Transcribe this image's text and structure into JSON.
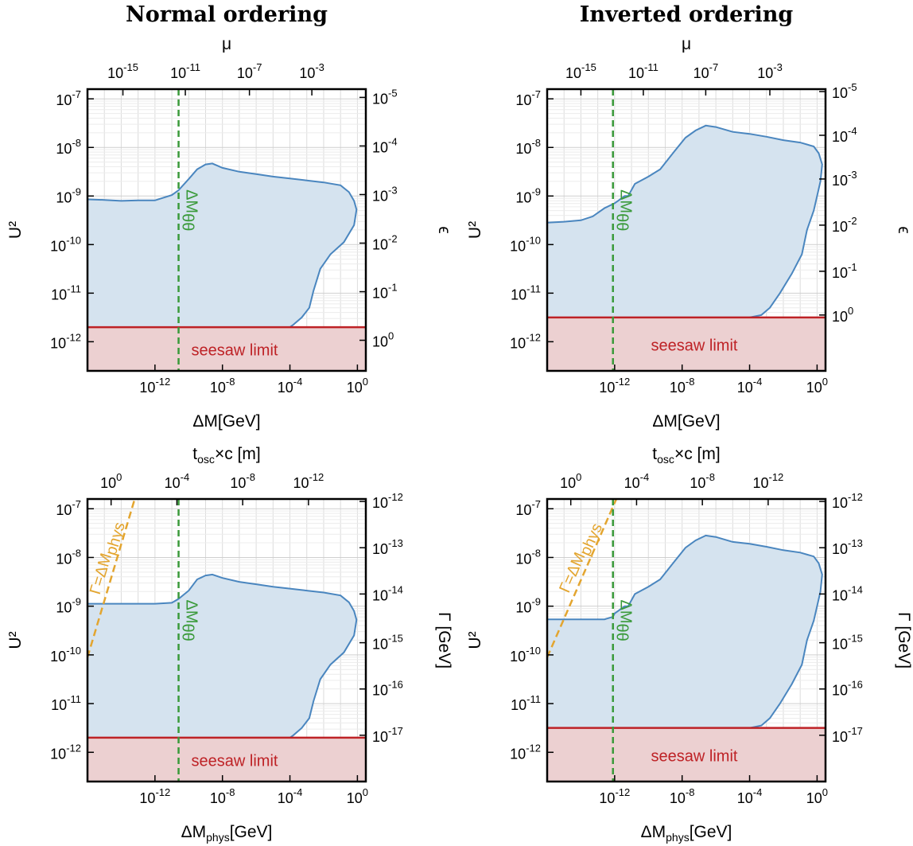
{
  "colors": {
    "region_fill": "#d5e3ef",
    "region_line": "#4a86bf",
    "seesaw_fill": "#ecd0d1",
    "seesaw_line": "#be2226",
    "dm_theta_line": "#3a9a3a",
    "gamma_line": "#e3a52f",
    "grid": "#dcdcdc"
  },
  "chart_data": [
    {
      "type": "area",
      "title": "Normal ordering",
      "xlabel": "ΔM[GeV]",
      "ylabel": "U²",
      "x2label": "μ",
      "y2label": "ϵ",
      "x_scale": "log",
      "y_scale": "log",
      "xlim_log10": [
        -16,
        0.5
      ],
      "ylim_log10": [
        -12.6,
        -6.8
      ],
      "x_ticks_log10": [
        -12,
        -8,
        -4,
        0
      ],
      "y_ticks_log10": [
        -12,
        -11,
        -10,
        -9,
        -8,
        -7
      ],
      "x2_ticks": [
        {
          "exp": "-15",
          "at_log10_x": -13.9
        },
        {
          "exp": "-11",
          "at_log10_x": -10.2
        },
        {
          "exp": "-7",
          "at_log10_x": -6.4
        },
        {
          "exp": "-3",
          "at_log10_x": -2.7
        }
      ],
      "y2_ticks": [
        {
          "label": "10",
          "exp": "-5",
          "at_log10_y": -6.97
        },
        {
          "label": "10",
          "exp": "-4",
          "at_log10_y": -7.97
        },
        {
          "label": "10",
          "exp": "-3",
          "at_log10_y": -8.97
        },
        {
          "label": "10",
          "exp": "-2",
          "at_log10_y": -9.97
        },
        {
          "label": "10",
          "exp": "-1",
          "at_log10_y": -10.97
        },
        {
          "label": "10",
          "exp": "0",
          "at_log10_y": -11.97
        }
      ],
      "grid": true,
      "seesaw_limit_log10_U2": -11.7,
      "seesaw_label": "seesaw limit",
      "dm_theta_log10_x": -10.6,
      "dm_theta_label": "ΔM",
      "dm_theta_sub": "θθ",
      "region_boundary_log10": [
        [
          -16,
          -9.07
        ],
        [
          -15,
          -9.08
        ],
        [
          -14,
          -9.1
        ],
        [
          -13,
          -9.09
        ],
        [
          -12,
          -9.09
        ],
        [
          -11,
          -8.98
        ],
        [
          -10.6,
          -8.88
        ],
        [
          -10,
          -8.65
        ],
        [
          -9.5,
          -8.45
        ],
        [
          -9,
          -8.35
        ],
        [
          -8.6,
          -8.33
        ],
        [
          -8,
          -8.42
        ],
        [
          -7,
          -8.5
        ],
        [
          -6,
          -8.55
        ],
        [
          -5,
          -8.6
        ],
        [
          -4,
          -8.64
        ],
        [
          -3,
          -8.68
        ],
        [
          -2,
          -8.72
        ],
        [
          -1,
          -8.78
        ],
        [
          -0.5,
          -8.92
        ],
        [
          -0.2,
          -9.1
        ],
        [
          -0.05,
          -9.28
        ],
        [
          -0.2,
          -9.6
        ],
        [
          -0.8,
          -9.95
        ],
        [
          -1.6,
          -10.2
        ],
        [
          -2.2,
          -10.5
        ],
        [
          -2.6,
          -10.95
        ],
        [
          -2.85,
          -11.3
        ],
        [
          -3.3,
          -11.5
        ],
        [
          -3.8,
          -11.65
        ],
        [
          -4,
          -11.7
        ],
        [
          -16,
          -11.7
        ]
      ],
      "gamma_line": null
    },
    {
      "type": "area",
      "title": "Inverted ordering",
      "xlabel": "ΔM[GeV]",
      "ylabel": "U²",
      "x2label": "μ",
      "y2label": "ϵ",
      "x_scale": "log",
      "y_scale": "log",
      "xlim_log10": [
        -16,
        0.5
      ],
      "ylim_log10": [
        -12.6,
        -6.8
      ],
      "x_ticks_log10": [
        -12,
        -8,
        -4,
        0
      ],
      "y_ticks_log10": [
        -12,
        -11,
        -10,
        -9,
        -8,
        -7
      ],
      "x2_ticks": [
        {
          "exp": "-15",
          "at_log10_x": -14
        },
        {
          "exp": "-11",
          "at_log10_x": -10.3
        },
        {
          "exp": "-7",
          "at_log10_x": -6.6
        },
        {
          "exp": "-3",
          "at_log10_x": -2.8
        }
      ],
      "y2_ticks": [
        {
          "label": "10",
          "exp": "-5",
          "at_log10_y": -6.85
        },
        {
          "label": "10",
          "exp": "-4",
          "at_log10_y": -7.75
        },
        {
          "label": "10",
          "exp": "-3",
          "at_log10_y": -8.65
        },
        {
          "label": "10",
          "exp": "-2",
          "at_log10_y": -9.6
        },
        {
          "label": "10",
          "exp": "-1",
          "at_log10_y": -10.55
        },
        {
          "label": "10",
          "exp": "0",
          "at_log10_y": -11.45
        }
      ],
      "grid": true,
      "seesaw_limit_log10_U2": -11.5,
      "seesaw_label": "seesaw limit",
      "dm_theta_log10_x": -12.1,
      "dm_theta_label": "ΔM",
      "dm_theta_sub": "θθ",
      "region_boundary_log10": [
        [
          -16,
          -9.55
        ],
        [
          -15,
          -9.53
        ],
        [
          -14,
          -9.5
        ],
        [
          -13.3,
          -9.42
        ],
        [
          -12.6,
          -9.25
        ],
        [
          -12,
          -9.15
        ],
        [
          -11.4,
          -9.0
        ],
        [
          -11.2,
          -9.0
        ],
        [
          -10.8,
          -8.75
        ],
        [
          -10,
          -8.6
        ],
        [
          -9.3,
          -8.45
        ],
        [
          -8.5,
          -8.1
        ],
        [
          -7.8,
          -7.8
        ],
        [
          -7.2,
          -7.65
        ],
        [
          -6.6,
          -7.55
        ],
        [
          -6,
          -7.58
        ],
        [
          -5,
          -7.68
        ],
        [
          -4,
          -7.72
        ],
        [
          -3,
          -7.78
        ],
        [
          -2,
          -7.85
        ],
        [
          -1,
          -7.9
        ],
        [
          -0.2,
          -7.98
        ],
        [
          0.1,
          -8.12
        ],
        [
          0.3,
          -8.35
        ],
        [
          0.2,
          -8.7
        ],
        [
          -0.2,
          -9.3
        ],
        [
          -0.6,
          -9.7
        ],
        [
          -0.9,
          -10.2
        ],
        [
          -1.5,
          -10.6
        ],
        [
          -2.2,
          -11.0
        ],
        [
          -2.8,
          -11.3
        ],
        [
          -3.3,
          -11.45
        ],
        [
          -4,
          -11.5
        ],
        [
          -16,
          -11.5
        ]
      ],
      "gamma_line": null
    },
    {
      "type": "area",
      "title": "",
      "xlabel": "ΔM",
      "xlabel_sub": "phys",
      "xlabel_tail": "[GeV]",
      "ylabel": "U²",
      "x2label": "t",
      "x2label_sub": "osc",
      "x2label_tail": "×c [m]",
      "y2label": "Γ [GeV]",
      "x_scale": "log",
      "y_scale": "log",
      "xlim_log10": [
        -16,
        0.5
      ],
      "ylim_log10": [
        -12.6,
        -6.8
      ],
      "x_ticks_log10": [
        -12,
        -8,
        -4,
        0
      ],
      "y_ticks_log10": [
        -12,
        -11,
        -10,
        -9,
        -8,
        -7
      ],
      "x2_ticks": [
        {
          "exp": "0",
          "at_log10_x": -14.6
        },
        {
          "exp": "-4",
          "at_log10_x": -10.7
        },
        {
          "exp": "-8",
          "at_log10_x": -6.8
        },
        {
          "exp": "-12",
          "at_log10_x": -2.9
        }
      ],
      "y2_ticks": [
        {
          "label": "10",
          "exp": "-12",
          "at_log10_y": -6.85
        },
        {
          "label": "10",
          "exp": "-13",
          "at_log10_y": -7.8
        },
        {
          "label": "10",
          "exp": "-14",
          "at_log10_y": -8.75
        },
        {
          "label": "10",
          "exp": "-15",
          "at_log10_y": -9.75
        },
        {
          "label": "10",
          "exp": "-16",
          "at_log10_y": -10.7
        },
        {
          "label": "10",
          "exp": "-17",
          "at_log10_y": -11.65
        }
      ],
      "grid": true,
      "seesaw_limit_log10_U2": -11.7,
      "seesaw_label": "seesaw limit",
      "dm_theta_log10_x": -10.6,
      "dm_theta_label": "ΔM",
      "dm_theta_sub": "θθ",
      "region_boundary_log10": [
        [
          -16,
          -8.95
        ],
        [
          -14,
          -8.95
        ],
        [
          -12,
          -8.95
        ],
        [
          -11,
          -8.93
        ],
        [
          -10.6,
          -8.85
        ],
        [
          -10,
          -8.68
        ],
        [
          -9.5,
          -8.45
        ],
        [
          -9,
          -8.37
        ],
        [
          -8.6,
          -8.35
        ],
        [
          -8,
          -8.42
        ],
        [
          -7,
          -8.5
        ],
        [
          -6,
          -8.55
        ],
        [
          -5,
          -8.6
        ],
        [
          -4,
          -8.64
        ],
        [
          -3,
          -8.68
        ],
        [
          -2,
          -8.72
        ],
        [
          -1,
          -8.78
        ],
        [
          -0.5,
          -8.92
        ],
        [
          -0.2,
          -9.1
        ],
        [
          -0.05,
          -9.28
        ],
        [
          -0.2,
          -9.6
        ],
        [
          -0.8,
          -9.95
        ],
        [
          -1.6,
          -10.2
        ],
        [
          -2.2,
          -10.5
        ],
        [
          -2.6,
          -10.95
        ],
        [
          -2.85,
          -11.3
        ],
        [
          -3.3,
          -11.5
        ],
        [
          -3.8,
          -11.65
        ],
        [
          -4,
          -11.7
        ],
        [
          -16,
          -11.7
        ]
      ],
      "gamma_line": {
        "label": "Γ=ΔM",
        "label_sub": "phys",
        "from_log10": [
          -16,
          -10.05
        ],
        "to_log10": [
          -13.2,
          -6.8
        ]
      }
    },
    {
      "type": "area",
      "title": "",
      "xlabel": "ΔM",
      "xlabel_sub": "phys",
      "xlabel_tail": "[GeV]",
      "ylabel": "U²",
      "x2label": "t",
      "x2label_sub": "osc",
      "x2label_tail": "×c [m]",
      "y2label": "Γ [GeV]",
      "x_scale": "log",
      "y_scale": "log",
      "xlim_log10": [
        -16,
        0.5
      ],
      "ylim_log10": [
        -12.6,
        -6.8
      ],
      "x_ticks_log10": [
        -12,
        -8,
        -4,
        0
      ],
      "y_ticks_log10": [
        -12,
        -11,
        -10,
        -9,
        -8,
        -7
      ],
      "x2_ticks": [
        {
          "exp": "0",
          "at_log10_x": -14.6
        },
        {
          "exp": "-4",
          "at_log10_x": -10.7
        },
        {
          "exp": "-8",
          "at_log10_x": -6.8
        },
        {
          "exp": "-12",
          "at_log10_x": -2.9
        }
      ],
      "y2_ticks": [
        {
          "label": "10",
          "exp": "-12",
          "at_log10_y": -6.85
        },
        {
          "label": "10",
          "exp": "-13",
          "at_log10_y": -7.8
        },
        {
          "label": "10",
          "exp": "-14",
          "at_log10_y": -8.75
        },
        {
          "label": "10",
          "exp": "-15",
          "at_log10_y": -9.75
        },
        {
          "label": "10",
          "exp": "-16",
          "at_log10_y": -10.7
        },
        {
          "label": "10",
          "exp": "-17",
          "at_log10_y": -11.65
        }
      ],
      "grid": true,
      "seesaw_limit_log10_U2": -11.5,
      "seesaw_label": "seesaw limit",
      "dm_theta_log10_x": -12.1,
      "dm_theta_label": "ΔM",
      "dm_theta_sub": "θθ",
      "region_boundary_log10": [
        [
          -16,
          -9.27
        ],
        [
          -14,
          -9.27
        ],
        [
          -12.6,
          -9.27
        ],
        [
          -12.1,
          -9.22
        ],
        [
          -12,
          -9.15
        ],
        [
          -11.4,
          -9.0
        ],
        [
          -11.2,
          -9.0
        ],
        [
          -10.8,
          -8.75
        ],
        [
          -10,
          -8.6
        ],
        [
          -9.3,
          -8.45
        ],
        [
          -8.5,
          -8.1
        ],
        [
          -7.8,
          -7.8
        ],
        [
          -7.2,
          -7.65
        ],
        [
          -6.6,
          -7.55
        ],
        [
          -6,
          -7.58
        ],
        [
          -5,
          -7.68
        ],
        [
          -4,
          -7.72
        ],
        [
          -3,
          -7.78
        ],
        [
          -2,
          -7.85
        ],
        [
          -1,
          -7.9
        ],
        [
          -0.2,
          -7.98
        ],
        [
          0.1,
          -8.12
        ],
        [
          0.3,
          -8.35
        ],
        [
          0.2,
          -8.7
        ],
        [
          -0.2,
          -9.3
        ],
        [
          -0.6,
          -9.7
        ],
        [
          -0.9,
          -10.2
        ],
        [
          -1.5,
          -10.6
        ],
        [
          -2.2,
          -11.0
        ],
        [
          -2.8,
          -11.3
        ],
        [
          -3.3,
          -11.45
        ],
        [
          -4,
          -11.5
        ],
        [
          -16,
          -11.5
        ]
      ],
      "gamma_line": {
        "label": "Γ=ΔM",
        "label_sub": "phys",
        "from_log10": [
          -16,
          -10.05
        ],
        "to_log10": [
          -11.9,
          -6.8
        ]
      }
    }
  ]
}
